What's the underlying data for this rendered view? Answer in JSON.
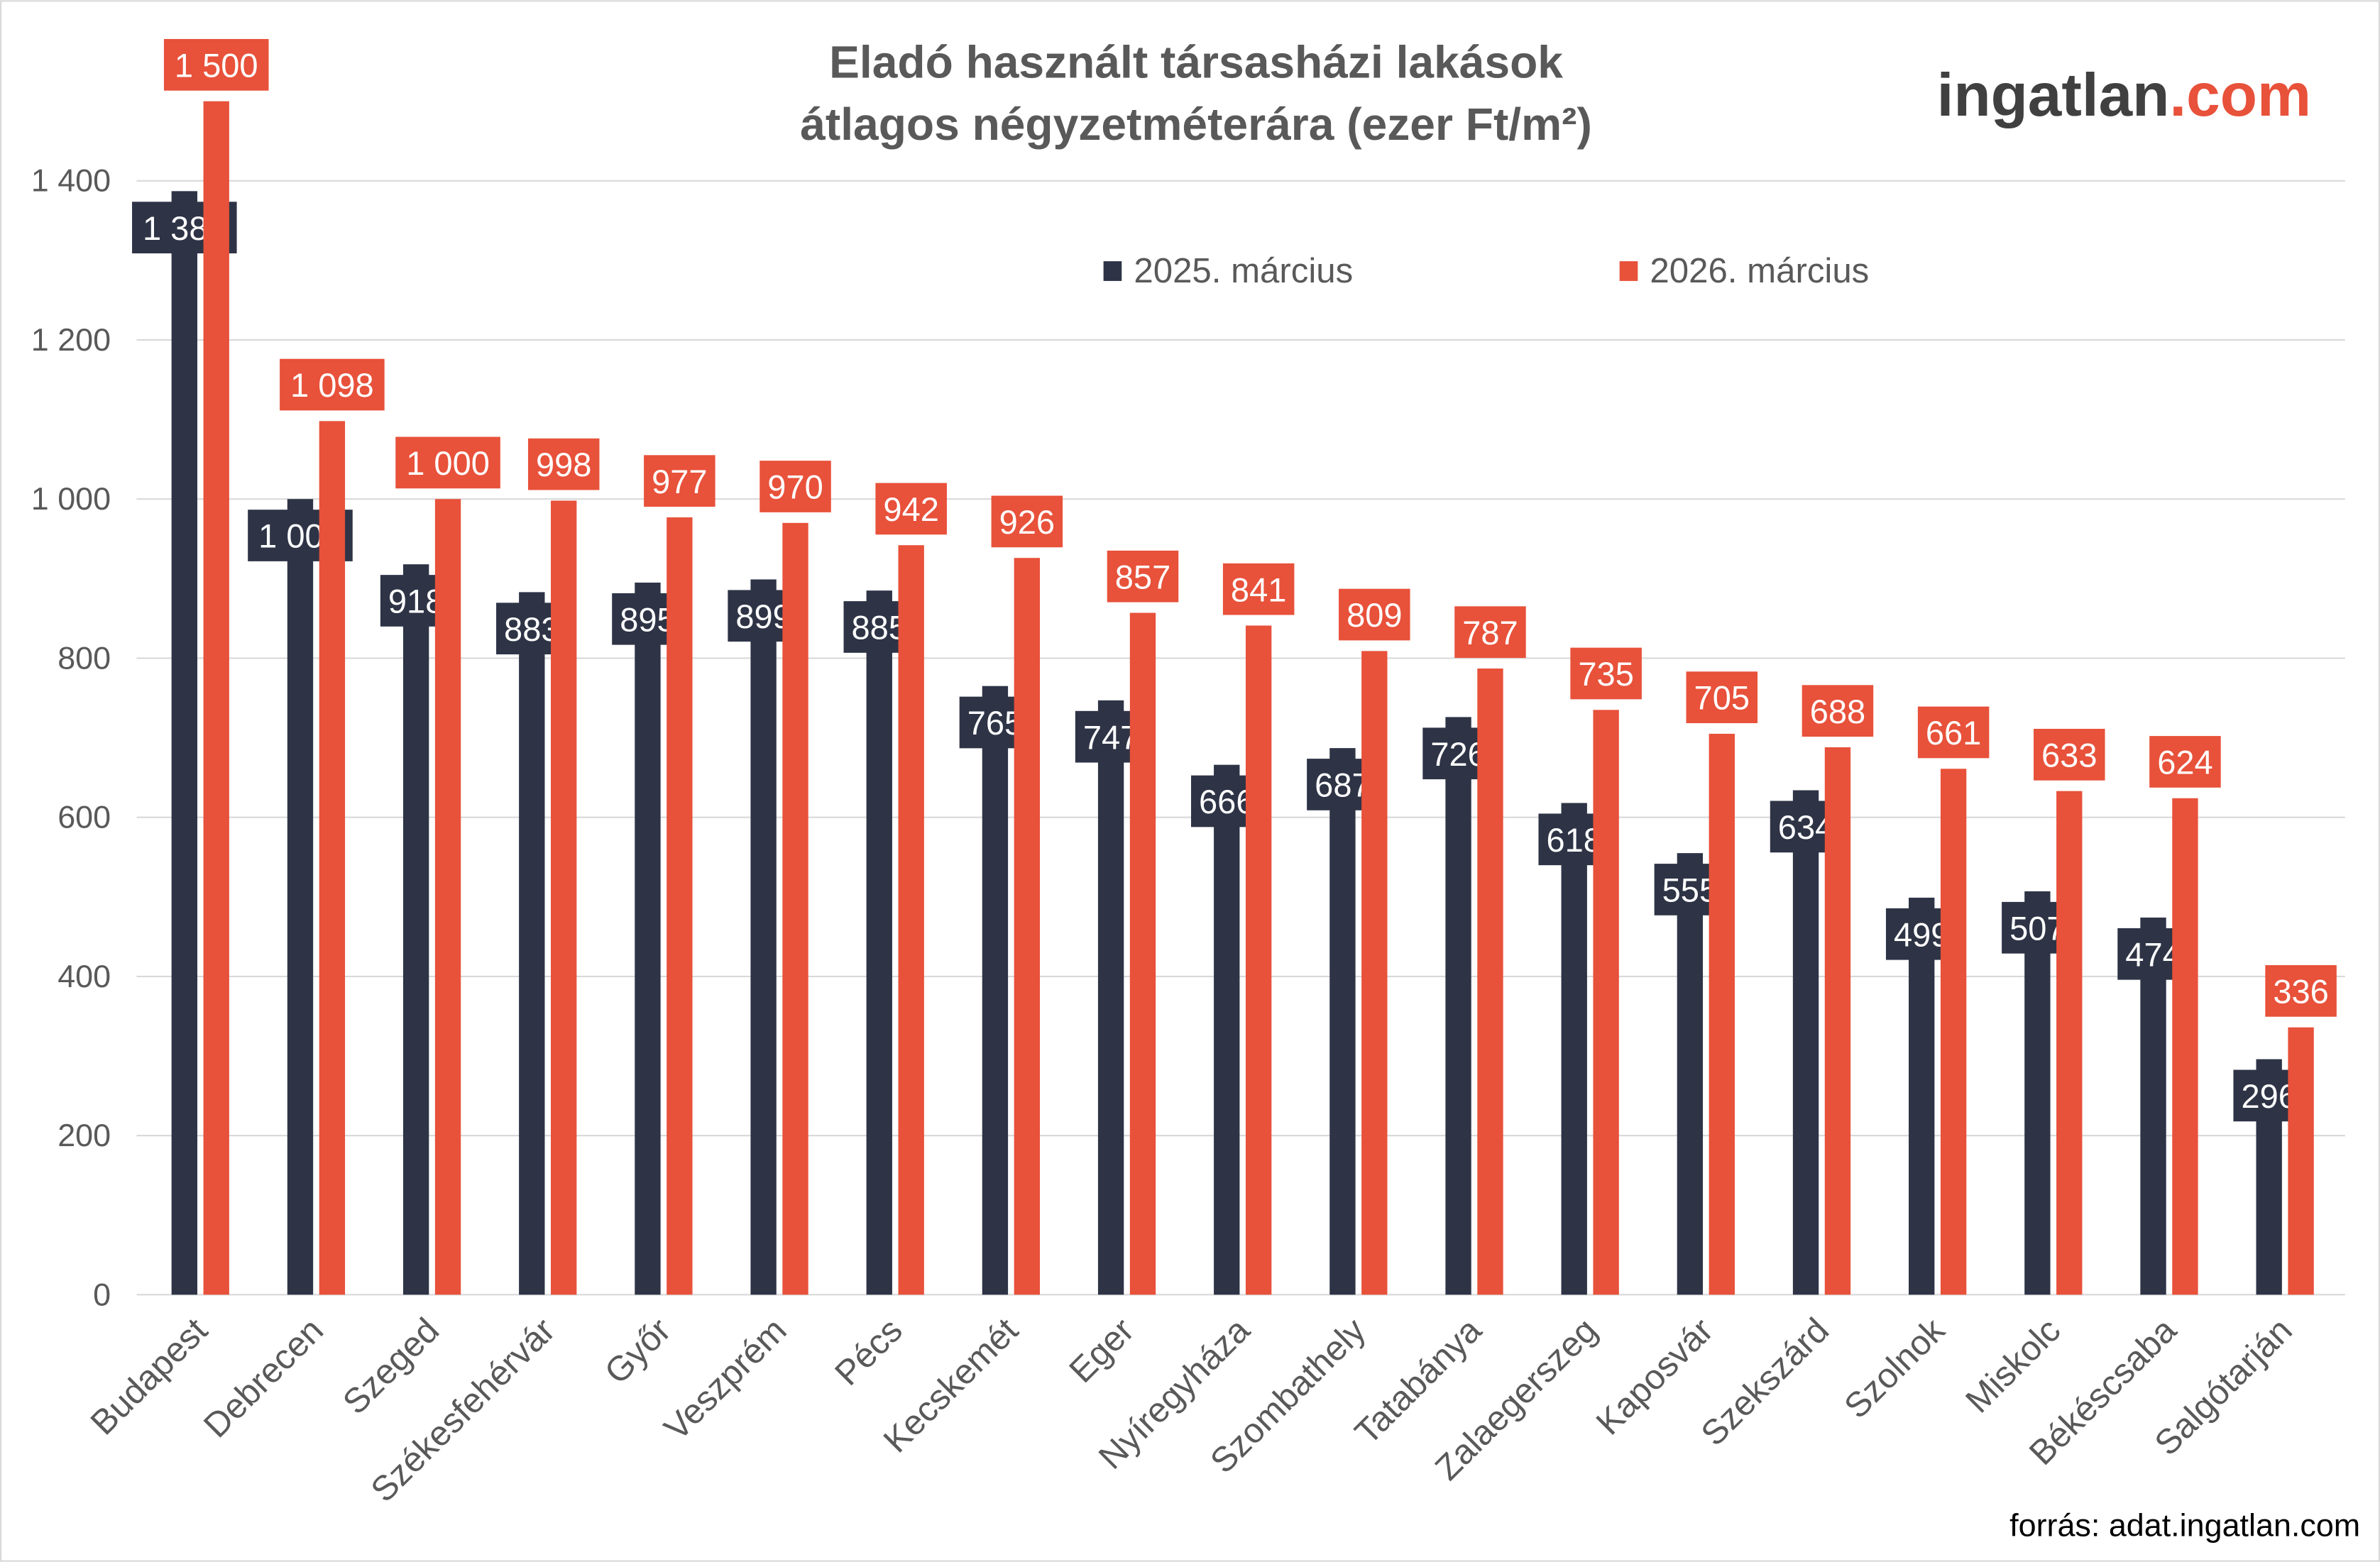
{
  "logo": {
    "main": "ingatlan",
    "suffix": ".com"
  },
  "source": "forrás: adat.ingatlan.com",
  "colors": {
    "series1": "#2e3446",
    "series2": "#e8513a",
    "text": "#595959",
    "grid": "#d9d9d9"
  },
  "chart_data": {
    "type": "bar",
    "title_line1": "Eladó használt társasházi lakások",
    "title_line2": "átlagos négyzetméterára (ezer Ft/m²)",
    "xlabel": "",
    "ylabel": "",
    "ylim": [
      0,
      1500
    ],
    "yticks": [
      0,
      200,
      400,
      600,
      800,
      1000,
      1200,
      1400
    ],
    "ytick_labels": [
      "0",
      "200",
      "400",
      "600",
      "800",
      "1 000",
      "1 200",
      "1 400"
    ],
    "grid": true,
    "legend_position": "top-center",
    "categories": [
      "Budapest",
      "Debrecen",
      "Szeged",
      "Székesfehérvár",
      "Győr",
      "Veszprém",
      "Pécs",
      "Kecskemét",
      "Eger",
      "Nyíregyháza",
      "Szombathely",
      "Tatabánya",
      "Zalaegerszeg",
      "Kaposvár",
      "Szekszárd",
      "Szolnok",
      "Miskolc",
      "Békéscsaba",
      "Salgótarján"
    ],
    "series": [
      {
        "name": "2025. március",
        "values": [
          1387,
          1000,
          918,
          883,
          895,
          899,
          885,
          765,
          747,
          666,
          687,
          726,
          618,
          555,
          634,
          499,
          507,
          474,
          296
        ],
        "labels": [
          "1 387",
          "1 000",
          "918",
          "883",
          "895",
          "899",
          "885",
          "765",
          "747",
          "666",
          "687",
          "726",
          "618",
          "555",
          "634",
          "499",
          "507",
          "474",
          "296"
        ]
      },
      {
        "name": "2026. március",
        "values": [
          1500,
          1098,
          1000,
          998,
          977,
          970,
          942,
          926,
          857,
          841,
          809,
          787,
          735,
          705,
          688,
          661,
          633,
          624,
          336
        ],
        "labels": [
          "1 500",
          "1 098",
          "1 000",
          "998",
          "977",
          "970",
          "942",
          "926",
          "857",
          "841",
          "809",
          "787",
          "735",
          "705",
          "688",
          "661",
          "633",
          "624",
          "336"
        ]
      }
    ]
  }
}
